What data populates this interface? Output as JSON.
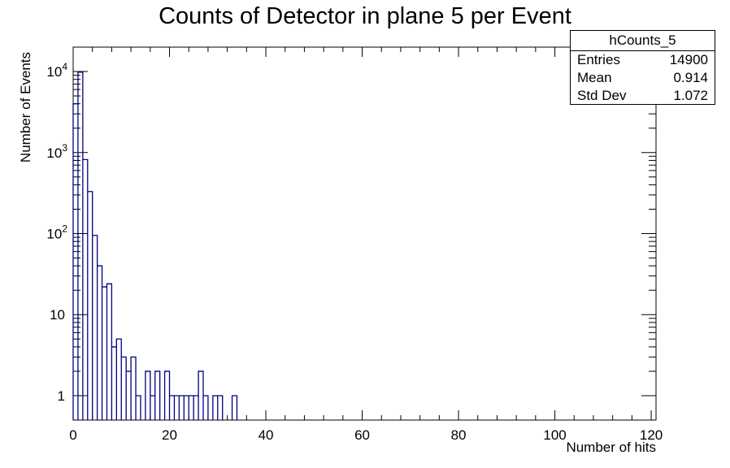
{
  "chart_data": {
    "type": "histogram",
    "title": "Counts of Detector in plane 5 per Event",
    "xlabel": "Number of hits",
    "ylabel": "Number of Events",
    "xlim": [
      0,
      121
    ],
    "ylim": [
      0.5,
      20000
    ],
    "yscale": "log",
    "bin_width": 1,
    "x_ticks": [
      "0",
      "20",
      "40",
      "60",
      "80",
      "100",
      "120"
    ],
    "y_ticks": [
      {
        "value": 1,
        "base": "1",
        "exp": ""
      },
      {
        "value": 10,
        "base": "10",
        "exp": ""
      },
      {
        "value": 100,
        "base": "10",
        "exp": "2"
      },
      {
        "value": 1000,
        "base": "10",
        "exp": "3"
      },
      {
        "value": 10000,
        "base": "10",
        "exp": "4"
      }
    ],
    "series": [
      {
        "line_color": "#000080",
        "bins": [
          {
            "x": 0,
            "y": 4000
          },
          {
            "x": 1,
            "y": 9800
          },
          {
            "x": 2,
            "y": 820
          },
          {
            "x": 3,
            "y": 330
          },
          {
            "x": 4,
            "y": 95
          },
          {
            "x": 5,
            "y": 40
          },
          {
            "x": 6,
            "y": 22
          },
          {
            "x": 7,
            "y": 24
          },
          {
            "x": 8,
            "y": 4
          },
          {
            "x": 9,
            "y": 5
          },
          {
            "x": 10,
            "y": 3
          },
          {
            "x": 11,
            "y": 2
          },
          {
            "x": 12,
            "y": 3
          },
          {
            "x": 13,
            "y": 1
          },
          {
            "x": 15,
            "y": 2
          },
          {
            "x": 16,
            "y": 1
          },
          {
            "x": 17,
            "y": 2
          },
          {
            "x": 19,
            "y": 2
          },
          {
            "x": 20,
            "y": 1
          },
          {
            "x": 21,
            "y": 1
          },
          {
            "x": 22,
            "y": 1
          },
          {
            "x": 23,
            "y": 1
          },
          {
            "x": 24,
            "y": 1
          },
          {
            "x": 25,
            "y": 1
          },
          {
            "x": 26,
            "y": 2
          },
          {
            "x": 27,
            "y": 1
          },
          {
            "x": 29,
            "y": 1
          },
          {
            "x": 30,
            "y": 1
          },
          {
            "x": 33,
            "y": 1
          }
        ]
      }
    ]
  },
  "stats_box": {
    "name": "hCounts_5",
    "rows": [
      {
        "key": "Entries",
        "value": "14900"
      },
      {
        "key": "Mean",
        "value": "0.914"
      },
      {
        "key": "Std Dev",
        "value": "1.072"
      }
    ]
  }
}
